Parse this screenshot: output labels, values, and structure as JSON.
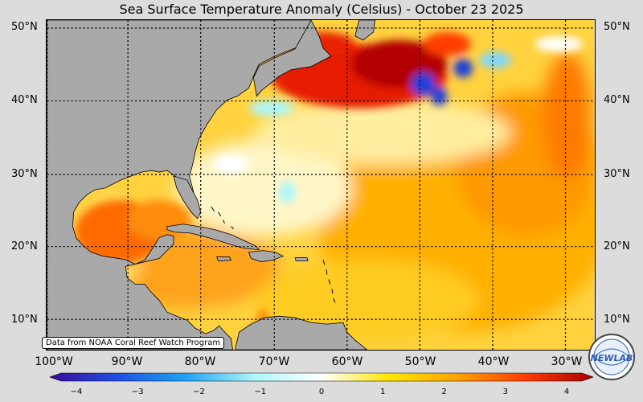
{
  "title": "Sea Surface Temperature Anomaly (Celsius) - October 23 2025",
  "credit": "Data from NOAA Coral Reef Watch Program",
  "logo_text": "NEWLAB",
  "lat_labels": [
    "50°N",
    "40°N",
    "30°N",
    "20°N",
    "10°N"
  ],
  "lon_labels": [
    "100°W",
    "90°W",
    "80°W",
    "70°W",
    "60°W",
    "50°W",
    "40°W",
    "30°W"
  ],
  "colorbar": {
    "min": -4,
    "max": 4,
    "ticks": [
      "−4",
      "−3",
      "−2",
      "−1",
      "0",
      "1",
      "2",
      "3",
      "4"
    ],
    "stops": [
      "#3b0a9b",
      "#1f4fe6",
      "#1fa3f2",
      "#aef6fb",
      "#ffffff",
      "#ffe600",
      "#ffa200",
      "#ff3d00",
      "#a80000"
    ]
  },
  "colors": {
    "land": "#a9a9a9",
    "ocean_base": "#ffd94a",
    "background": "#dcdcdc"
  }
}
